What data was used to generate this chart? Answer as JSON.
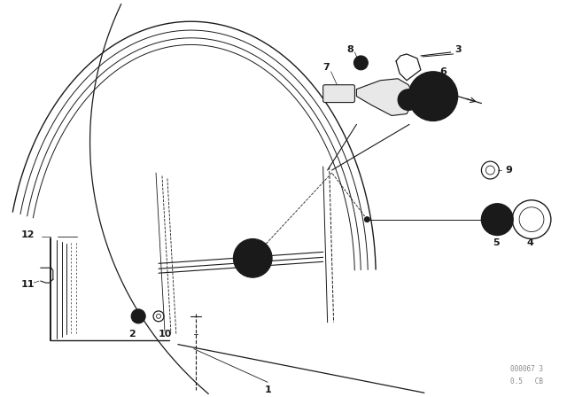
{
  "bg_color": "#ffffff",
  "line_color": "#1a1a1a",
  "fig_width": 6.4,
  "fig_height": 4.48,
  "watermark": "000067 3",
  "watermark2": "0.5   CB"
}
